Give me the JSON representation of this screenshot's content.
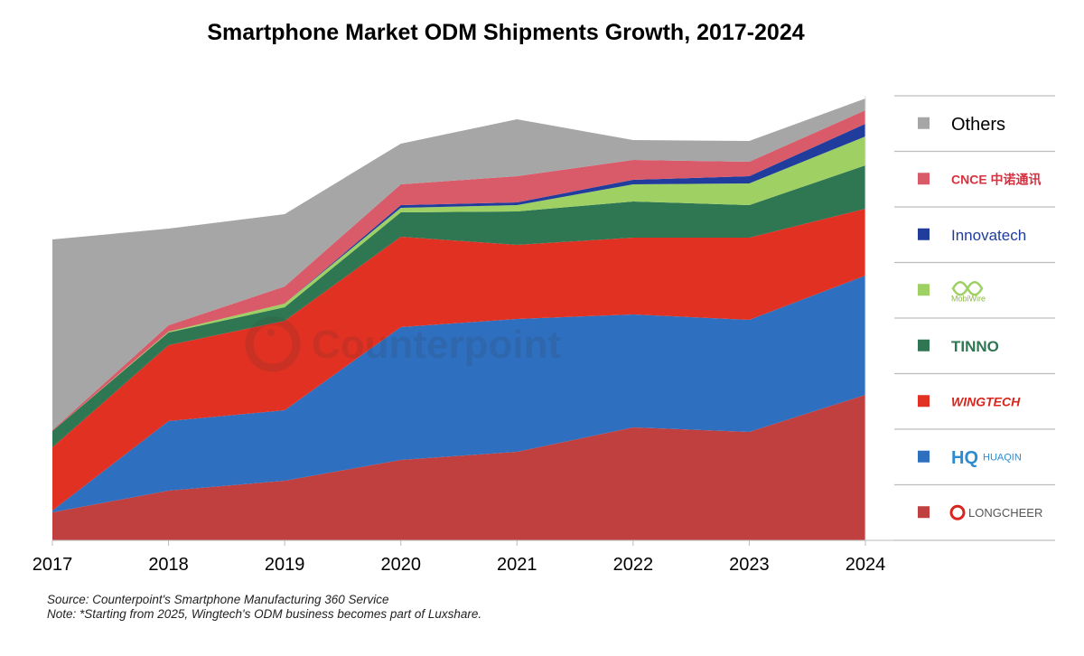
{
  "chart_data": {
    "type": "area",
    "stacked": true,
    "title": "Smartphone Market ODM Shipments Growth, 2017-2024",
    "xlabel": "",
    "ylabel": "",
    "x": [
      "2017",
      "2018",
      "2019",
      "2020",
      "2021",
      "2022",
      "2023",
      "2024"
    ],
    "y_axis_shown": false,
    "grid": false,
    "legend_placement": "right",
    "value_note": "relative (no y-axis printed)",
    "series": [
      {
        "name": "LONGCHEER",
        "color": "#C0403F",
        "values": [
          31,
          55,
          66,
          89,
          98,
          125,
          120,
          161
        ]
      },
      {
        "name": "HUAQIN",
        "color": "#2F6FC0",
        "values": [
          2,
          77,
          78,
          147,
          147,
          125,
          124,
          132
        ]
      },
      {
        "name": "WINGTECH",
        "color": "#E03122",
        "values": [
          70,
          84,
          99,
          100,
          82,
          85,
          91,
          74
        ]
      },
      {
        "name": "TINNO",
        "color": "#2F7652",
        "values": [
          18,
          14,
          15,
          27,
          37,
          40,
          36,
          48
        ]
      },
      {
        "name": "MobiWire",
        "color": "#9ED064",
        "values": [
          0,
          1,
          4,
          5,
          7,
          19,
          24,
          32
        ]
      },
      {
        "name": "Innovatech",
        "color": "#203C9C",
        "values": [
          0,
          0,
          0,
          3,
          3,
          5,
          8,
          14
        ]
      },
      {
        "name": "CNCE 中诺通讯",
        "color": "#D95A68",
        "values": [
          1,
          7,
          19,
          23,
          29,
          22,
          16,
          15
        ]
      },
      {
        "name": "Others",
        "color": "#A6A6A6",
        "values": [
          211,
          107,
          80,
          45,
          63,
          22,
          23,
          13
        ]
      }
    ]
  },
  "watermark": "Counterpoint",
  "notes": {
    "source": "Source: Counterpoint's Smartphone Manufacturing 360 Service",
    "note": "Note: *Starting from 2025, Wingtech's ODM business becomes part of Luxshare."
  }
}
